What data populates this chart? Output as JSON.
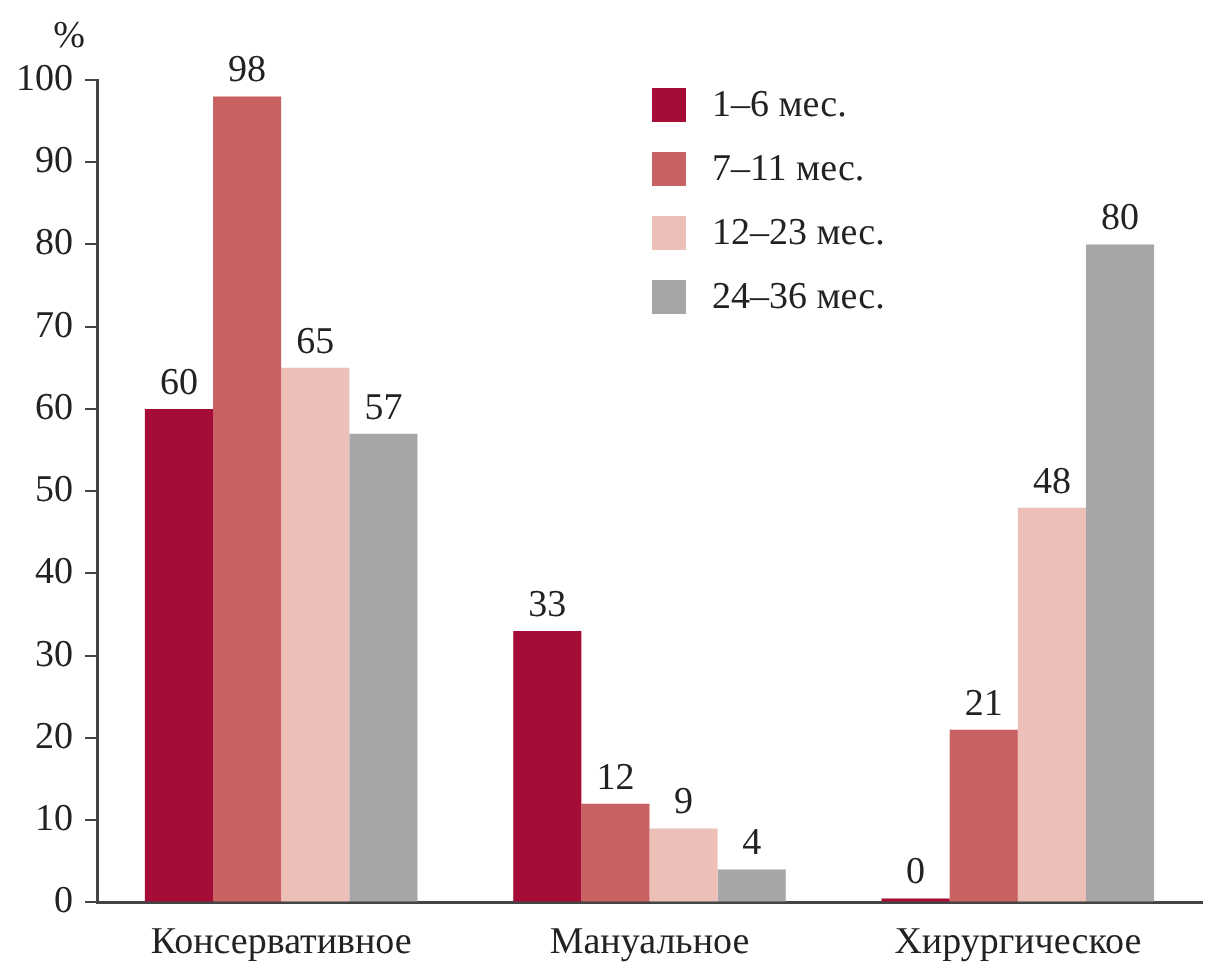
{
  "chart_data": {
    "type": "bar",
    "ylabel": "%",
    "categories": [
      "Консервативное",
      "Мануальное",
      "Хирургическое"
    ],
    "series": [
      {
        "name": "1–6 мес.",
        "color": "#a50d36",
        "values": [
          60,
          33,
          0
        ]
      },
      {
        "name": "7–11 мес.",
        "color": "#c86161",
        "values": [
          98,
          12,
          21
        ]
      },
      {
        "name": "12–23 мес.",
        "color": "#ecbfb9",
        "values": [
          65,
          9,
          48
        ]
      },
      {
        "name": "24–36 мес.",
        "color": "#a6a5a8",
        "values": [
          57,
          4,
          80
        ]
      }
    ],
    "ylim": [
      0,
      100
    ],
    "yticks": [
      0,
      10,
      20,
      30,
      40,
      50,
      60,
      70,
      80,
      90,
      100
    ],
    "grid": false,
    "legend": "top right",
    "data_labels": true
  }
}
